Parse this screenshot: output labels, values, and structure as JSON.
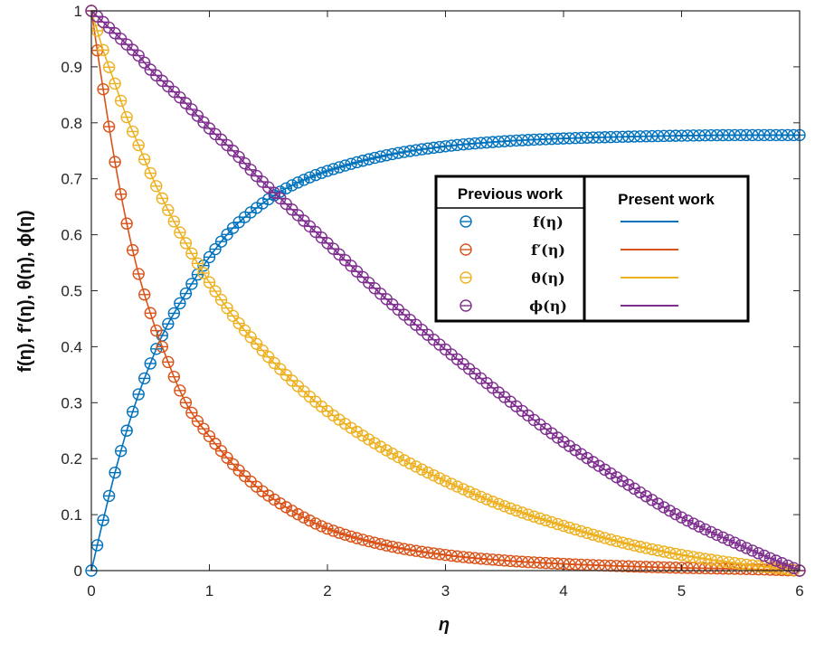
{
  "chart_data": {
    "type": "line",
    "title": "",
    "xlabel": "η",
    "ylabel": "f(η), f′(η), θ(η), ϕ(η)",
    "xlim": [
      0,
      6
    ],
    "ylim": [
      0,
      1
    ],
    "xticks": [
      "0",
      "1",
      "2",
      "3",
      "4",
      "5",
      "6"
    ],
    "yticks": [
      "0",
      "0.1",
      "0.2",
      "0.3",
      "0.4",
      "0.5",
      "0.6",
      "0.7",
      "0.8",
      "0.9",
      "1"
    ],
    "grid": false,
    "legend": {
      "placement": "center-right",
      "previous_header": "Previous work",
      "present_header": "Present work"
    },
    "x": [
      0,
      0.1,
      0.2,
      0.3,
      0.4,
      0.5,
      0.6,
      0.8,
      1.0,
      1.2,
      1.4,
      1.6,
      1.8,
      2.0,
      2.5,
      3.0,
      3.5,
      4.0,
      4.5,
      5.0,
      5.5,
      6.0
    ],
    "series": [
      {
        "name": "f(η)",
        "label": "f(η)",
        "color": "#0072BD",
        "values": [
          0,
          0.09,
          0.175,
          0.25,
          0.315,
          0.37,
          0.42,
          0.495,
          0.56,
          0.612,
          0.648,
          0.677,
          0.698,
          0.714,
          0.742,
          0.758,
          0.767,
          0.772,
          0.775,
          0.777,
          0.778,
          0.778
        ]
      },
      {
        "name": "f′(η)",
        "label": "f′(η)",
        "color": "#D95319",
        "values": [
          1,
          0.86,
          0.73,
          0.62,
          0.53,
          0.46,
          0.4,
          0.3,
          0.24,
          0.19,
          0.15,
          0.12,
          0.095,
          0.075,
          0.045,
          0.028,
          0.018,
          0.012,
          0.008,
          0.005,
          0.003,
          0.0
        ]
      },
      {
        "name": "θ(η)",
        "label": "θ(η)",
        "color": "#EDB120",
        "values": [
          1,
          0.93,
          0.87,
          0.81,
          0.76,
          0.71,
          0.665,
          0.585,
          0.515,
          0.455,
          0.405,
          0.36,
          0.32,
          0.285,
          0.215,
          0.16,
          0.115,
          0.08,
          0.05,
          0.028,
          0.012,
          0.0
        ]
      },
      {
        "name": "ϕ(η)",
        "label": "ϕ(η)",
        "color": "#7E2F8E",
        "values": [
          1,
          0.98,
          0.96,
          0.94,
          0.92,
          0.895,
          0.875,
          0.835,
          0.79,
          0.75,
          0.705,
          0.665,
          0.625,
          0.585,
          0.485,
          0.395,
          0.31,
          0.23,
          0.16,
          0.095,
          0.045,
          0.0
        ]
      }
    ]
  }
}
